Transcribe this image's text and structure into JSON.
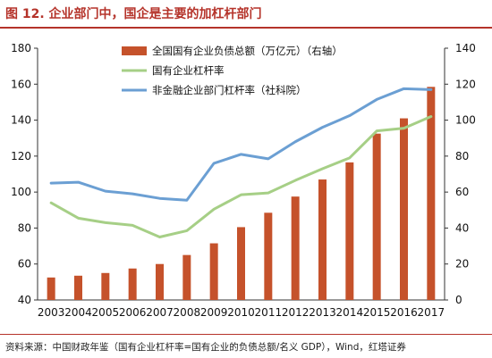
{
  "title": "图 12. 企业部门中，国企是主要的加杠杆部门",
  "source": "资料来源：中国财政年鉴（国有企业杠杆率=国有企业的负债总额/名义 GDP），Wind，红塔证券",
  "colors": {
    "title": "#b5332a",
    "bar": "#c5522b",
    "green": "#a6cf86",
    "blue": "#6b9fd3"
  },
  "chart_data": {
    "type": "bar+line",
    "categories": [
      "2003",
      "2004",
      "2005",
      "2006",
      "2007",
      "2008",
      "2009",
      "2010",
      "2011",
      "2012",
      "2013",
      "2014",
      "2015",
      "2016",
      "2017"
    ],
    "left_axis": {
      "min": 40,
      "max": 180,
      "ticks": [
        40,
        60,
        80,
        100,
        120,
        140,
        160,
        180
      ]
    },
    "right_axis": {
      "min": 0,
      "max": 140,
      "ticks": [
        0,
        20,
        40,
        60,
        80,
        100,
        120,
        140
      ]
    },
    "series": [
      {
        "name": "全国国有企业负债总额（万亿元）（右轴）",
        "type": "bar",
        "axis": "right",
        "values": [
          12.5,
          13.5,
          15,
          17.5,
          20,
          25,
          31.5,
          40.5,
          48.5,
          57.5,
          67,
          76.5,
          92.5,
          101,
          118.5
        ]
      },
      {
        "name": "国有企业杠杆率",
        "type": "line",
        "axis": "left",
        "values": [
          94,
          85.5,
          83,
          81.5,
          75,
          78.5,
          90.5,
          98.5,
          99.5,
          106.5,
          113,
          119,
          134,
          135.5,
          142
        ]
      },
      {
        "name": "非金融企业部门杠杆率（社科院）",
        "type": "line",
        "axis": "left",
        "values": [
          105,
          105.5,
          100.5,
          99,
          96.5,
          95.5,
          116,
          121,
          118.5,
          128,
          136,
          142.5,
          151.5,
          157.5,
          157
        ]
      }
    ],
    "legend_position": "top-center",
    "grid": false
  }
}
